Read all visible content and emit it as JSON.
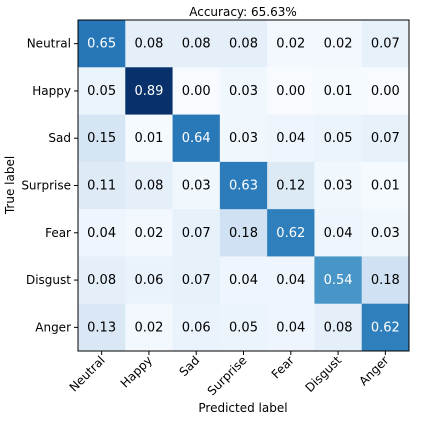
{
  "chart_data": {
    "type": "heatmap",
    "title": "Accuracy: 65.63%",
    "xlabel": "Predicted label",
    "ylabel": "True label",
    "x_categories": [
      "Neutral",
      "Happy",
      "Sad",
      "Surprise",
      "Fear",
      "Disgust",
      "Anger"
    ],
    "y_categories": [
      "Neutral",
      "Happy",
      "Sad",
      "Surprise",
      "Fear",
      "Disgust",
      "Anger"
    ],
    "values": [
      [
        0.65,
        0.08,
        0.08,
        0.08,
        0.02,
        0.02,
        0.07
      ],
      [
        0.05,
        0.89,
        0.0,
        0.03,
        0.0,
        0.01,
        0.0
      ],
      [
        0.15,
        0.01,
        0.64,
        0.03,
        0.04,
        0.05,
        0.07
      ],
      [
        0.11,
        0.08,
        0.03,
        0.63,
        0.12,
        0.03,
        0.01
      ],
      [
        0.04,
        0.02,
        0.07,
        0.18,
        0.62,
        0.04,
        0.03
      ],
      [
        0.08,
        0.06,
        0.07,
        0.04,
        0.04,
        0.54,
        0.18
      ],
      [
        0.13,
        0.02,
        0.06,
        0.05,
        0.04,
        0.08,
        0.62
      ]
    ],
    "value_range": [
      0,
      0.89
    ],
    "colormap": "Blues",
    "grid": false
  }
}
